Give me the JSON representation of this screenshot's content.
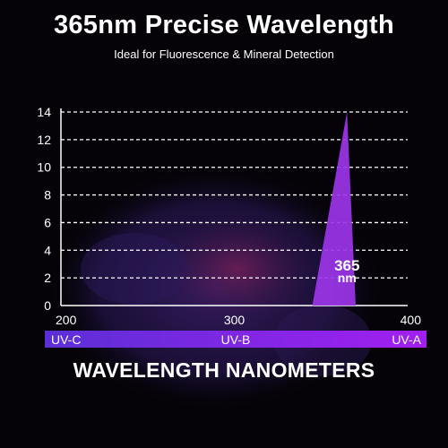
{
  "header": {
    "title": "365nm Precise Wavelength",
    "subtitle": "Ideal for Fluorescence & Mineral Detection"
  },
  "chart_data": {
    "type": "area",
    "y_ticks": [
      "0",
      "2",
      "4",
      "6",
      "8",
      "10",
      "12",
      "14"
    ],
    "ylim": [
      0,
      14
    ],
    "x_ticks": [
      "200",
      "300",
      "400"
    ],
    "xlim": [
      200,
      400
    ],
    "grid": true,
    "xlabel": "WAVELENGTH NANOMETERS",
    "series": [
      {
        "x": [
          345,
          365,
          370
        ],
        "y": [
          0,
          14,
          0
        ]
      }
    ],
    "peak_label_lines": [
      "365",
      "nm"
    ],
    "bands": [
      {
        "label": "UV-C",
        "align": "left"
      },
      {
        "label": "UV-B",
        "align": "center"
      },
      {
        "label": "UV-A",
        "align": "right"
      }
    ],
    "colors": {
      "peak": "#9b35e8",
      "band_start": "#5b2fd6",
      "band_end": "#a21ff0",
      "grid": "#ffffff"
    }
  }
}
